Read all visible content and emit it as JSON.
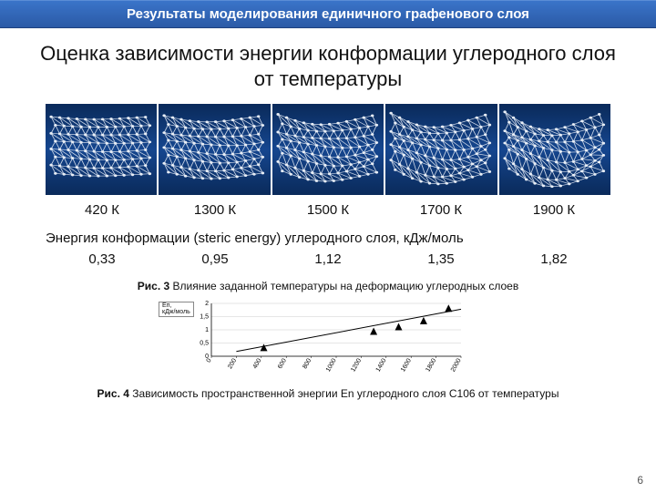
{
  "header": {
    "title": "Результаты моделирования единичного графенового слоя"
  },
  "main_title": "Оценка зависимости энергии конформации углеродного слоя от температуры",
  "temperatures": [
    "420 К",
    "1300 К",
    "1500 К",
    "1700 К",
    "1900 К"
  ],
  "energy_label": "Энергия конформации (steric energy) углеродного  слоя, кДж/моль",
  "energies": [
    "0,33",
    "0,95",
    "1,12",
    "1,35",
    "1,82"
  ],
  "fig3": {
    "bold": "Рис. 3",
    "text": " Влияние заданной температуры на деформацию углеродных слоев"
  },
  "fig4": {
    "bold": "Рис. 4",
    "text": " Зависимость пространственной энергии Еn углеродного слоя  С106 от температуры"
  },
  "chart": {
    "type": "scatter-line",
    "y_axis_title_top": "Еп,",
    "y_axis_title_bot": "кДж/моль",
    "ylim": [
      0,
      2
    ],
    "yticks": [
      0,
      0.5,
      1,
      1.5,
      2
    ],
    "xlim": [
      0,
      2000
    ],
    "xticks": [
      0,
      200,
      400,
      600,
      800,
      1000,
      1200,
      1400,
      1600,
      1800,
      2000
    ],
    "points": [
      {
        "x": 420,
        "y": 0.33
      },
      {
        "x": 1300,
        "y": 0.95
      },
      {
        "x": 1500,
        "y": 1.12
      },
      {
        "x": 1700,
        "y": 1.35
      },
      {
        "x": 1900,
        "y": 1.82
      }
    ],
    "fit_line": {
      "x1": 200,
      "y1": 0.18,
      "x2": 2000,
      "y2": 1.78
    },
    "colors": {
      "background": "#ffffff",
      "axis": "#000000",
      "grid": "#bfbfbf",
      "point": "#000000",
      "line": "#000000",
      "tick_label": "#000000"
    },
    "fontsizes": {
      "tick": 7,
      "axis_title": 7
    },
    "marker": {
      "shape": "triangle",
      "size": 4
    },
    "line_width": 1
  },
  "graphene_panels": {
    "bg_gradient": [
      "#0a2a5a",
      "#15468f",
      "#0a2a5a"
    ],
    "atom_color": "#e8eef6",
    "bond_color": "#cfd9e8",
    "bond_width": 0.7,
    "atom_radius": 1.4
  },
  "page_number": "6"
}
